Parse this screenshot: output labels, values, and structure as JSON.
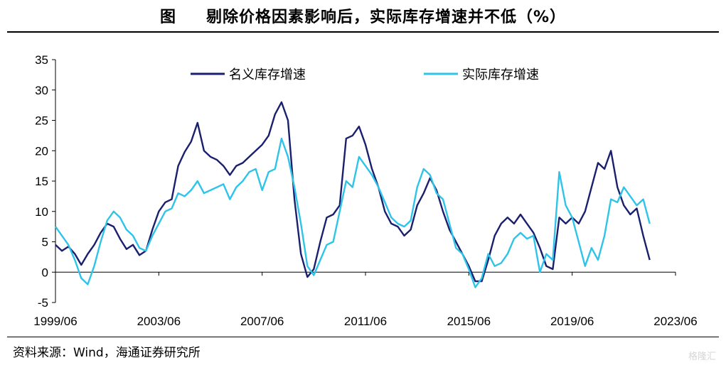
{
  "title": {
    "figure_label": "图",
    "text": "剔除价格因素影响后，实际库存增速并不低（%）"
  },
  "source": "资料来源：Wind，海通证券研究所",
  "watermark": "格隆汇",
  "colors": {
    "nominal": "#1a1f6e",
    "real": "#2ec4ea"
  },
  "chart_data": {
    "type": "line",
    "title": "剔除价格因素影响后，实际库存增速并不低（%）",
    "xlabel": "",
    "ylabel": "",
    "ylim": [
      -5,
      35
    ],
    "yticks": [
      -5,
      0,
      5,
      10,
      15,
      20,
      25,
      30,
      35
    ],
    "xlim": [
      "1999/06",
      "2023/06"
    ],
    "xtick_labels": [
      "1999/06",
      "2003/06",
      "2007/06",
      "2011/06",
      "2015/06",
      "2019/06",
      "2023/06"
    ],
    "grid": false,
    "legend_position": "top",
    "series": [
      {
        "name": "名义库存增速",
        "color": "#1a1f6e",
        "points": [
          [
            "1999/06",
            4.5
          ],
          [
            "1999/09",
            3.5
          ],
          [
            "1999/12",
            4.2
          ],
          [
            "2000/03",
            3.0
          ],
          [
            "2000/06",
            1.2
          ],
          [
            "2000/09",
            3.0
          ],
          [
            "2000/12",
            4.5
          ],
          [
            "2001/03",
            6.5
          ],
          [
            "2001/06",
            8.0
          ],
          [
            "2001/09",
            7.5
          ],
          [
            "2001/12",
            5.5
          ],
          [
            "2002/03",
            3.8
          ],
          [
            "2002/06",
            4.5
          ],
          [
            "2002/09",
            2.8
          ],
          [
            "2002/12",
            3.5
          ],
          [
            "2003/03",
            7.0
          ],
          [
            "2003/06",
            10.0
          ],
          [
            "2003/09",
            11.5
          ],
          [
            "2003/12",
            12.0
          ],
          [
            "2004/03",
            17.5
          ],
          [
            "2004/06",
            19.8
          ],
          [
            "2004/09",
            21.5
          ],
          [
            "2004/12",
            24.6
          ],
          [
            "2005/03",
            20.0
          ],
          [
            "2005/06",
            19.0
          ],
          [
            "2005/09",
            18.5
          ],
          [
            "2005/12",
            17.5
          ],
          [
            "2006/03",
            16.0
          ],
          [
            "2006/06",
            17.5
          ],
          [
            "2006/09",
            18.0
          ],
          [
            "2006/12",
            19.0
          ],
          [
            "2007/03",
            20.0
          ],
          [
            "2007/06",
            21.0
          ],
          [
            "2007/09",
            22.5
          ],
          [
            "2007/12",
            26.0
          ],
          [
            "2008/03",
            28.0
          ],
          [
            "2008/06",
            25.0
          ],
          [
            "2008/09",
            12.0
          ],
          [
            "2008/12",
            3.0
          ],
          [
            "2009/03",
            -0.8
          ],
          [
            "2009/06",
            0.5
          ],
          [
            "2009/09",
            5.0
          ],
          [
            "2009/12",
            9.0
          ],
          [
            "2010/03",
            9.5
          ],
          [
            "2010/06",
            11.0
          ],
          [
            "2010/09",
            22.0
          ],
          [
            "2010/12",
            22.5
          ],
          [
            "2011/03",
            24.0
          ],
          [
            "2011/06",
            21.0
          ],
          [
            "2011/09",
            17.0
          ],
          [
            "2011/12",
            14.0
          ],
          [
            "2012/03",
            10.0
          ],
          [
            "2012/06",
            8.0
          ],
          [
            "2012/09",
            7.5
          ],
          [
            "2012/12",
            6.0
          ],
          [
            "2013/03",
            7.0
          ],
          [
            "2013/06",
            11.0
          ],
          [
            "2013/09",
            13.0
          ],
          [
            "2013/12",
            15.5
          ],
          [
            "2014/03",
            13.5
          ],
          [
            "2014/06",
            10.0
          ],
          [
            "2014/09",
            7.0
          ],
          [
            "2014/12",
            5.0
          ],
          [
            "2015/03",
            3.0
          ],
          [
            "2015/06",
            1.0
          ],
          [
            "2015/09",
            -1.5
          ],
          [
            "2015/12",
            -1.5
          ],
          [
            "2016/03",
            2.0
          ],
          [
            "2016/06",
            6.0
          ],
          [
            "2016/09",
            8.0
          ],
          [
            "2016/12",
            9.0
          ],
          [
            "2017/03",
            8.0
          ],
          [
            "2017/06",
            9.5
          ],
          [
            "2017/09",
            8.0
          ],
          [
            "2017/12",
            6.5
          ],
          [
            "2018/03",
            4.0
          ],
          [
            "2018/06",
            1.0
          ],
          [
            "2018/09",
            0.5
          ],
          [
            "2018/12",
            9.0
          ],
          [
            "2019/03",
            8.0
          ],
          [
            "2019/06",
            9.0
          ],
          [
            "2019/09",
            8.0
          ],
          [
            "2019/12",
            10.0
          ],
          [
            "2020/03",
            14.0
          ],
          [
            "2020/06",
            18.0
          ],
          [
            "2020/09",
            17.0
          ],
          [
            "2020/12",
            20.0
          ],
          [
            "2021/03",
            14.0
          ],
          [
            "2021/06",
            11.0
          ],
          [
            "2021/09",
            9.5
          ],
          [
            "2021/12",
            10.5
          ],
          [
            "2022/03",
            6.0
          ],
          [
            "2022/06",
            2.0
          ]
        ]
      },
      {
        "name": "实际库存增速",
        "color": "#2ec4ea",
        "points": [
          [
            "1999/06",
            7.5
          ],
          [
            "1999/09",
            6.0
          ],
          [
            "1999/12",
            4.5
          ],
          [
            "2000/03",
            2.0
          ],
          [
            "2000/06",
            -1.0
          ],
          [
            "2000/09",
            -2.0
          ],
          [
            "2000/12",
            1.0
          ],
          [
            "2001/03",
            5.0
          ],
          [
            "2001/06",
            8.5
          ],
          [
            "2001/09",
            10.0
          ],
          [
            "2001/12",
            9.0
          ],
          [
            "2002/03",
            7.0
          ],
          [
            "2002/06",
            6.0
          ],
          [
            "2002/09",
            4.0
          ],
          [
            "2002/12",
            3.5
          ],
          [
            "2003/03",
            6.0
          ],
          [
            "2003/06",
            8.0
          ],
          [
            "2003/09",
            10.0
          ],
          [
            "2003/12",
            10.5
          ],
          [
            "2004/03",
            13.0
          ],
          [
            "2004/06",
            12.5
          ],
          [
            "2004/09",
            13.5
          ],
          [
            "2004/12",
            15.0
          ],
          [
            "2005/03",
            13.0
          ],
          [
            "2005/06",
            13.5
          ],
          [
            "2005/09",
            14.0
          ],
          [
            "2005/12",
            14.5
          ],
          [
            "2006/03",
            12.0
          ],
          [
            "2006/06",
            14.0
          ],
          [
            "2006/09",
            15.0
          ],
          [
            "2006/12",
            16.5
          ],
          [
            "2007/03",
            17.0
          ],
          [
            "2007/06",
            13.5
          ],
          [
            "2007/09",
            16.5
          ],
          [
            "2007/12",
            17.0
          ],
          [
            "2008/03",
            22.0
          ],
          [
            "2008/06",
            19.0
          ],
          [
            "2008/09",
            14.0
          ],
          [
            "2008/12",
            8.0
          ],
          [
            "2009/03",
            1.0
          ],
          [
            "2009/06",
            -0.5
          ],
          [
            "2009/09",
            2.0
          ],
          [
            "2009/12",
            4.5
          ],
          [
            "2010/03",
            5.0
          ],
          [
            "2010/06",
            10.0
          ],
          [
            "2010/09",
            15.0
          ],
          [
            "2010/12",
            14.0
          ],
          [
            "2011/03",
            19.0
          ],
          [
            "2011/06",
            17.5
          ],
          [
            "2011/09",
            16.0
          ],
          [
            "2011/12",
            14.0
          ],
          [
            "2012/03",
            11.5
          ],
          [
            "2012/06",
            9.0
          ],
          [
            "2012/09",
            8.0
          ],
          [
            "2012/12",
            7.5
          ],
          [
            "2013/03",
            8.5
          ],
          [
            "2013/06",
            14.0
          ],
          [
            "2013/09",
            17.0
          ],
          [
            "2013/12",
            16.0
          ],
          [
            "2014/03",
            13.0
          ],
          [
            "2014/06",
            12.0
          ],
          [
            "2014/09",
            8.0
          ],
          [
            "2014/12",
            4.0
          ],
          [
            "2015/03",
            3.0
          ],
          [
            "2015/06",
            0.5
          ],
          [
            "2015/09",
            -2.5
          ],
          [
            "2015/12",
            -1.0
          ],
          [
            "2016/03",
            3.0
          ],
          [
            "2016/06",
            1.0
          ],
          [
            "2016/09",
            1.5
          ],
          [
            "2016/12",
            3.0
          ],
          [
            "2017/03",
            5.5
          ],
          [
            "2017/06",
            6.5
          ],
          [
            "2017/09",
            5.5
          ],
          [
            "2017/12",
            6.0
          ],
          [
            "2018/03",
            0.0
          ],
          [
            "2018/06",
            3.0
          ],
          [
            "2018/09",
            2.0
          ],
          [
            "2018/12",
            16.5
          ],
          [
            "2019/03",
            11.0
          ],
          [
            "2019/06",
            9.0
          ],
          [
            "2019/09",
            5.0
          ],
          [
            "2019/12",
            1.0
          ],
          [
            "2020/03",
            4.0
          ],
          [
            "2020/06",
            2.0
          ],
          [
            "2020/09",
            6.0
          ],
          [
            "2020/12",
            12.0
          ],
          [
            "2021/03",
            11.5
          ],
          [
            "2021/06",
            14.0
          ],
          [
            "2021/09",
            12.5
          ],
          [
            "2021/12",
            11.0
          ],
          [
            "2022/03",
            12.0
          ],
          [
            "2022/06",
            8.0
          ]
        ]
      }
    ]
  }
}
